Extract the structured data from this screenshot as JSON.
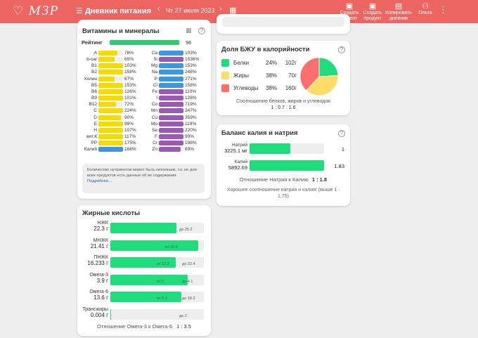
{
  "header": {
    "logo": "МЗР",
    "menu_icon": "hamburger-icon",
    "title": "Дневник питания",
    "date": "Чт 27 июля 2023",
    "actions": [
      {
        "label": "Создать рецепт",
        "icon": "recipe-icon"
      },
      {
        "label": "Создать продукт",
        "icon": "product-icon"
      },
      {
        "label": "Копировать дневник",
        "icon": "copy-icon"
      },
      {
        "label": "Ольга",
        "icon": "users-icon"
      }
    ]
  },
  "vitamins": {
    "title": "Витамины и минералы",
    "rating_label": "Рейтинг",
    "rating": "96",
    "rating_value": 96,
    "left": [
      [
        "A",
        "78%",
        "#f5dc00"
      ],
      [
        "b-car",
        "65%",
        "#f5dc00"
      ],
      [
        "B1",
        "103%",
        "#f5dc00"
      ],
      [
        "B2",
        "158%",
        "#f5dc00"
      ],
      [
        "Холин",
        "67%",
        "#f5dc00"
      ],
      [
        "B5",
        "153%",
        "#f5dc00"
      ],
      [
        "B6",
        "126%",
        "#f5dc00"
      ],
      [
        "B9",
        "101%",
        "#f5dc00"
      ],
      [
        "B12",
        "72%",
        "#f5dc00"
      ],
      [
        "C",
        "224%",
        "#f5dc00"
      ],
      [
        "D",
        "90%",
        "#f5dc00"
      ],
      [
        "E",
        "99%",
        "#f5dc00"
      ],
      [
        "H",
        "107%",
        "#f5dc00"
      ],
      [
        "вит.К",
        "117%",
        "#f5dc00"
      ],
      [
        "PP",
        "175%",
        "#f5dc00"
      ],
      [
        "Калий",
        "168%",
        "#3a97e0"
      ]
    ],
    "right": [
      [
        "Ca",
        "103%",
        "#3a97e0"
      ],
      [
        "Si",
        "1536%",
        "#9b59b6"
      ],
      [
        "Mg",
        "153%",
        "#3a97e0"
      ],
      [
        "Na",
        "248%",
        "#3a97e0"
      ],
      [
        "P",
        "271%",
        "#3a97e0"
      ],
      [
        "Cl",
        "158%",
        "#3a97e0"
      ],
      [
        "Fe",
        "110%",
        "#9b59b6"
      ],
      [
        "I",
        "128%",
        "#9b59b6"
      ],
      [
        "Co",
        "719%",
        "#9b59b6"
      ],
      [
        "Mn",
        "347%",
        "#9b59b6"
      ],
      [
        "Cu",
        "359%",
        "#9b59b6"
      ],
      [
        "Mo",
        "119%",
        "#9b59b6"
      ],
      [
        "Se",
        "220%",
        "#9b59b6"
      ],
      [
        "F",
        "99%",
        "#9b59b6"
      ],
      [
        "Cr",
        "198%",
        "#9b59b6"
      ],
      [
        "Zn",
        "89%",
        "#9b59b6"
      ]
    ],
    "note": "Количество нутриентов может быть неполным, т.к. не для всех продуктов есть данные об их содержании.",
    "more": "Подробнее..."
  },
  "fatty": {
    "title": "Жирные кислоты",
    "rows": [
      {
        "name": "НЖК",
        "amount": "22.3 г",
        "fill": 0.71,
        "min": "",
        "max": "до 25.2"
      },
      {
        "name": "МНЖК",
        "amount": "21.41 г",
        "fill": 0.94,
        "min": "от 18.3",
        "max": ""
      },
      {
        "name": "ПНЖК",
        "amount": "16.233 г",
        "fill": 0.7,
        "min": "от 12.2",
        "max": "до 22.4"
      },
      {
        "name": "Омега-3",
        "amount": "3.9 г",
        "fill": 0.83,
        "min": "от 1",
        "max": "до 4.1"
      },
      {
        "name": "Омега-6",
        "amount": "13.6 г",
        "fill": 0.76,
        "min": "от 5.1",
        "max": "до 18.3"
      },
      {
        "name": "Трансжиры",
        "amount": "0.004 г",
        "fill": 0.01,
        "min": "",
        "max": "до 2"
      }
    ],
    "ratio_label": "Отношение Омега-3 к Омега-6",
    "ratio": "1 : 3.5"
  },
  "macros": {
    "title": "Доля БЖУ в калорийности",
    "items": [
      {
        "name": "Белки",
        "pct": "24%",
        "grams": "102г",
        "value": 24,
        "color": "#1fdc7d"
      },
      {
        "name": "Жиры",
        "pct": "38%",
        "grams": "70г",
        "value": 38,
        "color": "#fddc6a"
      },
      {
        "name": "Углеводы",
        "pct": "38%",
        "grams": "160г",
        "value": 38,
        "color": "#fd6e6e"
      }
    ],
    "ratio_label": "Соотношение белков, жиров и углеводов",
    "ratio": "1 : 0.7 : 1.6"
  },
  "kna": {
    "title": "Баланс калия и натрия",
    "rows": [
      {
        "name": "Натрий",
        "amount": "3225.1 мг",
        "fill": 0.55,
        "value": "1"
      },
      {
        "name": "Калий",
        "amount": "5892.69",
        "fill": 1,
        "value": "1.83"
      }
    ],
    "ratio_label": "Отношение Натрия к Калию",
    "ratio": "1 : 1.8",
    "comment": "Хорошее соотношение натрия и калия! (выше 1 : 1,75)"
  }
}
